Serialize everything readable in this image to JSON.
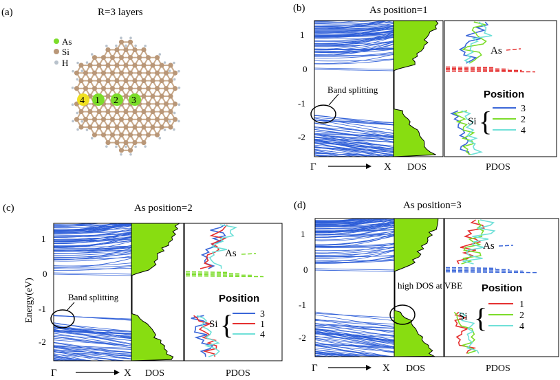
{
  "panel_a": {
    "label": "(a)",
    "title": "R=3 layers",
    "legend": [
      {
        "name": "As",
        "color": "#7cdc2a"
      },
      {
        "name": "Si",
        "color": "#b99778"
      },
      {
        "name": "H",
        "color": "#b8c2cc"
      }
    ],
    "site_labels": [
      "4",
      "1",
      "2",
      "3"
    ],
    "site_colors": [
      "#f0e020",
      "#7cdc2a",
      "#7cdc2a",
      "#7cdc2a"
    ]
  },
  "panels": [
    {
      "label": "(b)",
      "title": "As position=1",
      "band_note": "Band splitting",
      "as_label": "As",
      "si_label": "Si",
      "position_title": "Position",
      "positions": [
        "3",
        "2",
        "4"
      ],
      "colors": {
        "as": "#e53030",
        "p1": "#3a66d8",
        "p2": "#7cdc2a",
        "p3": "#6fe0d8"
      },
      "gamma": "Γ",
      "x": "X",
      "dos": "DOS",
      "pdos": "PDOS"
    },
    {
      "label": "(c)",
      "title": "As position=2",
      "band_note": "Band splitting",
      "as_label": "As",
      "si_label": "Si",
      "position_title": "Position",
      "positions": [
        "3",
        "1",
        "4"
      ],
      "colors": {
        "as": "#7cdc2a",
        "p1": "#3a66d8",
        "p2": "#e53030",
        "p3": "#6fe0d8"
      },
      "gamma": "Γ",
      "x": "X",
      "dos": "DOS",
      "pdos": "PDOS",
      "ylabel": "Energy(eV)"
    },
    {
      "label": "(d)",
      "title": "As position=3",
      "band_note": "high DOS at VBE",
      "as_label": "As",
      "si_label": "Si",
      "position_title": "Position",
      "positions": [
        "1",
        "2",
        "4"
      ],
      "colors": {
        "as": "#3a66d8",
        "p1": "#e53030",
        "p2": "#7cdc2a",
        "p3": "#6fe0d8"
      },
      "gamma": "Γ",
      "x": "X",
      "dos": "DOS",
      "pdos": "PDOS"
    }
  ],
  "y_ticks": [
    "1",
    "0",
    "-1",
    "-2"
  ],
  "band_color": "#2f5fd8",
  "dos_fill": "#88dd11"
}
